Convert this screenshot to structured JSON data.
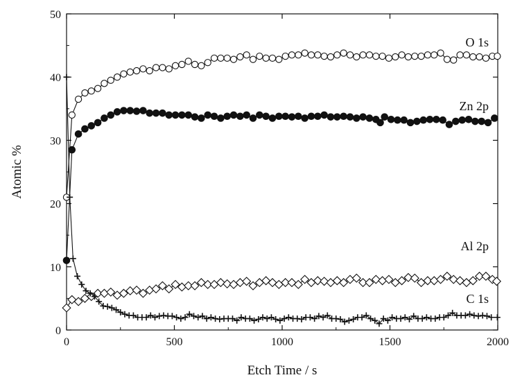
{
  "chart_data": {
    "type": "scatter",
    "title": "",
    "xlabel": "Etch Time / s",
    "ylabel": "Atomic %",
    "xlim": [
      0,
      2000
    ],
    "ylim": [
      0,
      50
    ],
    "xticks": [
      0,
      500,
      1000,
      1500,
      2000
    ],
    "yticks": [
      0,
      10,
      20,
      30,
      40,
      50
    ],
    "x_tick_labels": [
      "0",
      "500",
      "1000",
      "1500",
      "2000"
    ],
    "y_tick_labels": [
      "0",
      "10",
      "20",
      "30",
      "40",
      "50"
    ],
    "grid": false,
    "legend": "inline labels at right",
    "colors": {
      "marks": "#111111",
      "background": "#ffffff"
    },
    "series": [
      {
        "name": "O 1s",
        "marker": "open-circle",
        "points": [
          [
            0,
            21
          ],
          [
            25,
            34
          ],
          [
            55,
            36.5
          ],
          [
            85,
            37.5
          ],
          [
            115,
            37.8
          ],
          [
            145,
            38.2
          ],
          [
            175,
            39
          ],
          [
            205,
            39.5
          ],
          [
            235,
            40
          ],
          [
            265,
            40.5
          ],
          [
            295,
            40.8
          ],
          [
            325,
            41
          ],
          [
            355,
            41.3
          ],
          [
            385,
            41
          ],
          [
            415,
            41.5
          ],
          [
            445,
            41.5
          ],
          [
            475,
            41.3
          ],
          [
            505,
            41.8
          ],
          [
            535,
            42
          ],
          [
            565,
            42.5
          ],
          [
            595,
            42
          ],
          [
            625,
            41.8
          ],
          [
            655,
            42.3
          ],
          [
            685,
            43
          ],
          [
            715,
            43
          ],
          [
            745,
            43
          ],
          [
            775,
            42.8
          ],
          [
            805,
            43.2
          ],
          [
            835,
            43.5
          ],
          [
            865,
            42.8
          ],
          [
            895,
            43.3
          ],
          [
            925,
            43
          ],
          [
            955,
            43
          ],
          [
            985,
            42.8
          ],
          [
            1015,
            43.3
          ],
          [
            1045,
            43.5
          ],
          [
            1075,
            43.5
          ],
          [
            1105,
            43.8
          ],
          [
            1135,
            43.5
          ],
          [
            1165,
            43.5
          ],
          [
            1195,
            43.3
          ],
          [
            1225,
            43.2
          ],
          [
            1255,
            43.5
          ],
          [
            1285,
            43.8
          ],
          [
            1315,
            43.5
          ],
          [
            1345,
            43.2
          ],
          [
            1375,
            43.5
          ],
          [
            1405,
            43.5
          ],
          [
            1435,
            43.3
          ],
          [
            1465,
            43.3
          ],
          [
            1495,
            43
          ],
          [
            1525,
            43.2
          ],
          [
            1555,
            43.5
          ],
          [
            1585,
            43.2
          ],
          [
            1615,
            43.3
          ],
          [
            1645,
            43.3
          ],
          [
            1675,
            43.5
          ],
          [
            1705,
            43.5
          ],
          [
            1735,
            43.8
          ],
          [
            1765,
            42.8
          ],
          [
            1795,
            42.7
          ],
          [
            1825,
            43.5
          ],
          [
            1855,
            43.5
          ],
          [
            1885,
            43.2
          ],
          [
            1915,
            43.2
          ],
          [
            1945,
            43
          ],
          [
            1975,
            43.3
          ],
          [
            1998,
            43.3
          ]
        ]
      },
      {
        "name": "Zn 2p",
        "marker": "filled-circle",
        "points": [
          [
            0,
            11
          ],
          [
            25,
            28.5
          ],
          [
            55,
            31
          ],
          [
            85,
            31.8
          ],
          [
            115,
            32.3
          ],
          [
            145,
            32.8
          ],
          [
            175,
            33.5
          ],
          [
            205,
            34
          ],
          [
            235,
            34.5
          ],
          [
            265,
            34.7
          ],
          [
            295,
            34.7
          ],
          [
            325,
            34.6
          ],
          [
            355,
            34.7
          ],
          [
            385,
            34.3
          ],
          [
            415,
            34.3
          ],
          [
            445,
            34.3
          ],
          [
            475,
            34
          ],
          [
            505,
            34
          ],
          [
            535,
            34
          ],
          [
            565,
            34
          ],
          [
            595,
            33.7
          ],
          [
            625,
            33.5
          ],
          [
            655,
            34
          ],
          [
            685,
            33.8
          ],
          [
            715,
            33.5
          ],
          [
            745,
            33.8
          ],
          [
            775,
            34
          ],
          [
            805,
            33.8
          ],
          [
            835,
            34
          ],
          [
            865,
            33.5
          ],
          [
            895,
            34
          ],
          [
            925,
            33.8
          ],
          [
            955,
            33.5
          ],
          [
            985,
            33.8
          ],
          [
            1015,
            33.8
          ],
          [
            1045,
            33.7
          ],
          [
            1075,
            33.8
          ],
          [
            1105,
            33.5
          ],
          [
            1135,
            33.8
          ],
          [
            1165,
            33.8
          ],
          [
            1195,
            34
          ],
          [
            1225,
            33.7
          ],
          [
            1255,
            33.7
          ],
          [
            1285,
            33.8
          ],
          [
            1315,
            33.7
          ],
          [
            1345,
            33.5
          ],
          [
            1375,
            33.7
          ],
          [
            1405,
            33.5
          ],
          [
            1435,
            33.3
          ],
          [
            1455,
            32.8
          ],
          [
            1475,
            33.7
          ],
          [
            1505,
            33.3
          ],
          [
            1535,
            33.2
          ],
          [
            1565,
            33.2
          ],
          [
            1595,
            32.8
          ],
          [
            1625,
            33
          ],
          [
            1655,
            33.2
          ],
          [
            1685,
            33.3
          ],
          [
            1715,
            33.3
          ],
          [
            1745,
            33.2
          ],
          [
            1775,
            32.5
          ],
          [
            1805,
            33
          ],
          [
            1835,
            33.2
          ],
          [
            1865,
            33.3
          ],
          [
            1895,
            33
          ],
          [
            1925,
            33
          ],
          [
            1955,
            32.8
          ],
          [
            1985,
            33.5
          ]
        ]
      },
      {
        "name": "Al 2p",
        "marker": "open-diamond",
        "points": [
          [
            0,
            3.5
          ],
          [
            25,
            4.8
          ],
          [
            55,
            4.5
          ],
          [
            85,
            5
          ],
          [
            115,
            5.3
          ],
          [
            145,
            5.8
          ],
          [
            175,
            5.8
          ],
          [
            205,
            6
          ],
          [
            235,
            5.5
          ],
          [
            265,
            5.8
          ],
          [
            295,
            6.2
          ],
          [
            325,
            6.3
          ],
          [
            355,
            5.8
          ],
          [
            385,
            6.3
          ],
          [
            415,
            6.5
          ],
          [
            445,
            7
          ],
          [
            475,
            6.5
          ],
          [
            505,
            7.2
          ],
          [
            535,
            6.8
          ],
          [
            565,
            7
          ],
          [
            595,
            7
          ],
          [
            625,
            7.5
          ],
          [
            655,
            7.2
          ],
          [
            685,
            7.2
          ],
          [
            715,
            7.5
          ],
          [
            745,
            7.3
          ],
          [
            775,
            7.2
          ],
          [
            805,
            7.5
          ],
          [
            835,
            7.7
          ],
          [
            865,
            7
          ],
          [
            895,
            7.5
          ],
          [
            925,
            7.8
          ],
          [
            955,
            7.5
          ],
          [
            985,
            7.2
          ],
          [
            1015,
            7.5
          ],
          [
            1045,
            7.5
          ],
          [
            1075,
            7.2
          ],
          [
            1105,
            8
          ],
          [
            1135,
            7.5
          ],
          [
            1165,
            7.8
          ],
          [
            1195,
            7.7
          ],
          [
            1225,
            7.5
          ],
          [
            1255,
            7.8
          ],
          [
            1285,
            7.5
          ],
          [
            1315,
            8
          ],
          [
            1345,
            8.2
          ],
          [
            1375,
            7.5
          ],
          [
            1405,
            7.5
          ],
          [
            1435,
            8
          ],
          [
            1465,
            7.8
          ],
          [
            1495,
            8
          ],
          [
            1525,
            7.5
          ],
          [
            1555,
            7.8
          ],
          [
            1585,
            8.3
          ],
          [
            1615,
            8.2
          ],
          [
            1645,
            7.5
          ],
          [
            1675,
            7.8
          ],
          [
            1705,
            7.8
          ],
          [
            1735,
            8
          ],
          [
            1765,
            8.5
          ],
          [
            1795,
            8
          ],
          [
            1825,
            7.8
          ],
          [
            1855,
            7.5
          ],
          [
            1885,
            7.8
          ],
          [
            1915,
            8.5
          ],
          [
            1945,
            8.5
          ],
          [
            1975,
            8
          ],
          [
            1995,
            7.7
          ]
        ]
      },
      {
        "name": "C 1s",
        "marker": "plus",
        "points": [
          [
            0,
            40
          ],
          [
            15,
            21
          ],
          [
            30,
            11.3
          ],
          [
            50,
            8.5
          ],
          [
            70,
            7.2
          ],
          [
            90,
            6.2
          ],
          [
            110,
            5.8
          ],
          [
            130,
            5.3
          ],
          [
            150,
            4.5
          ],
          [
            170,
            3.8
          ],
          [
            190,
            3.7
          ],
          [
            210,
            3.5
          ],
          [
            230,
            3.2
          ],
          [
            250,
            2.8
          ],
          [
            270,
            2.5
          ],
          [
            290,
            2.3
          ],
          [
            310,
            2.3
          ],
          [
            330,
            2
          ],
          [
            350,
            2
          ],
          [
            370,
            2
          ],
          [
            390,
            2.3
          ],
          [
            410,
            2
          ],
          [
            430,
            2.2
          ],
          [
            450,
            2.3
          ],
          [
            470,
            2.2
          ],
          [
            490,
            2.2
          ],
          [
            510,
            2
          ],
          [
            530,
            1.8
          ],
          [
            550,
            2
          ],
          [
            570,
            2.5
          ],
          [
            590,
            2.2
          ],
          [
            610,
            2
          ],
          [
            630,
            2.2
          ],
          [
            650,
            1.8
          ],
          [
            670,
            2
          ],
          [
            690,
            1.8
          ],
          [
            710,
            1.7
          ],
          [
            730,
            1.8
          ],
          [
            750,
            1.8
          ],
          [
            770,
            1.8
          ],
          [
            790,
            1.5
          ],
          [
            810,
            2
          ],
          [
            830,
            1.8
          ],
          [
            850,
            1.8
          ],
          [
            870,
            1.5
          ],
          [
            890,
            1.7
          ],
          [
            910,
            2
          ],
          [
            930,
            1.8
          ],
          [
            950,
            2
          ],
          [
            970,
            1.7
          ],
          [
            990,
            1.5
          ],
          [
            1010,
            1.8
          ],
          [
            1030,
            2
          ],
          [
            1050,
            1.8
          ],
          [
            1070,
            1.8
          ],
          [
            1090,
            1.7
          ],
          [
            1110,
            2
          ],
          [
            1130,
            2
          ],
          [
            1150,
            1.8
          ],
          [
            1170,
            2.2
          ],
          [
            1190,
            2
          ],
          [
            1210,
            2.3
          ],
          [
            1230,
            1.8
          ],
          [
            1250,
            1.8
          ],
          [
            1270,
            1.7
          ],
          [
            1290,
            1.3
          ],
          [
            1310,
            1.5
          ],
          [
            1330,
            1.7
          ],
          [
            1350,
            2
          ],
          [
            1370,
            2
          ],
          [
            1390,
            2.3
          ],
          [
            1410,
            1.8
          ],
          [
            1430,
            1.5
          ],
          [
            1450,
            1
          ],
          [
            1470,
            1.8
          ],
          [
            1490,
            1.5
          ],
          [
            1510,
            2
          ],
          [
            1530,
            1.8
          ],
          [
            1550,
            1.8
          ],
          [
            1570,
            2
          ],
          [
            1590,
            1.7
          ],
          [
            1610,
            2.2
          ],
          [
            1630,
            1.8
          ],
          [
            1650,
            1.8
          ],
          [
            1670,
            2
          ],
          [
            1690,
            1.8
          ],
          [
            1710,
            1.8
          ],
          [
            1730,
            2
          ],
          [
            1750,
            2
          ],
          [
            1770,
            2.3
          ],
          [
            1790,
            2.7
          ],
          [
            1810,
            2.3
          ],
          [
            1830,
            2.3
          ],
          [
            1850,
            2.3
          ],
          [
            1870,
            2.5
          ],
          [
            1890,
            2.3
          ],
          [
            1910,
            2.2
          ],
          [
            1930,
            2.3
          ],
          [
            1950,
            2.2
          ],
          [
            1970,
            2
          ],
          [
            1998,
            2
          ]
        ]
      }
    ]
  }
}
